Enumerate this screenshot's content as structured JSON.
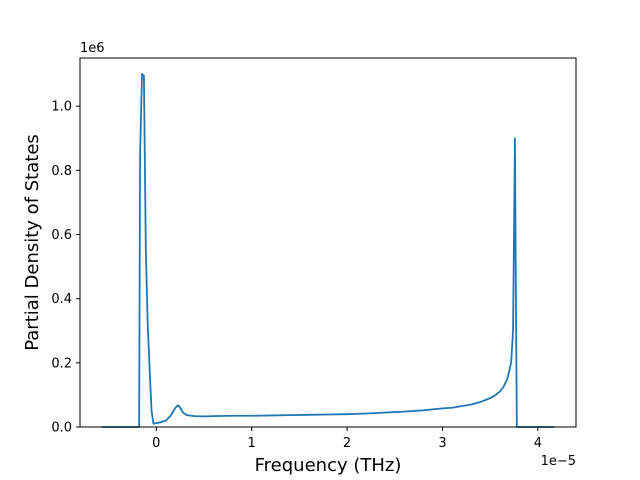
{
  "chart_data": {
    "type": "line",
    "title": "",
    "xlabel": "Frequency (THz)",
    "ylabel": "Partial Density of States",
    "x_offset_label": "1e−5",
    "y_offset_label": "1e6",
    "xlim": [
      -0.8,
      4.4
    ],
    "ylim": [
      0,
      1.15
    ],
    "x_ticks": [
      0,
      1,
      2,
      3,
      4
    ],
    "x_tick_labels": [
      "0",
      "1",
      "2",
      "3",
      "4"
    ],
    "y_ticks": [
      0.0,
      0.2,
      0.4,
      0.6,
      0.8,
      1.0
    ],
    "y_tick_labels": [
      "0.0",
      "0.2",
      "0.4",
      "0.6",
      "0.8",
      "1.0"
    ],
    "grid": false,
    "line_color": "#1f77b4",
    "series": [
      {
        "x": [
          -0.57,
          -0.3,
          -0.18,
          -0.17,
          -0.15,
          -0.13,
          -0.11,
          -0.09,
          -0.07,
          -0.05,
          -0.03,
          0.0,
          0.05,
          0.1,
          0.15,
          0.2,
          0.23,
          0.25,
          0.28,
          0.32,
          0.4,
          0.5,
          0.6,
          0.8,
          1.0,
          1.2,
          1.4,
          1.6,
          1.8,
          2.0,
          2.2,
          2.4,
          2.6,
          2.8,
          3.0,
          3.1,
          3.2,
          3.3,
          3.4,
          3.5,
          3.55,
          3.6,
          3.64,
          3.68,
          3.72,
          3.74,
          3.76,
          3.77,
          3.78,
          3.79,
          3.8,
          3.9,
          4.0,
          4.17
        ],
        "y": [
          0.0,
          0.0,
          0.0,
          0.85,
          1.1,
          1.095,
          0.55,
          0.32,
          0.18,
          0.05,
          0.01,
          0.012,
          0.015,
          0.02,
          0.035,
          0.06,
          0.068,
          0.06,
          0.045,
          0.037,
          0.034,
          0.033,
          0.034,
          0.035,
          0.035,
          0.036,
          0.037,
          0.038,
          0.039,
          0.04,
          0.042,
          0.045,
          0.048,
          0.052,
          0.058,
          0.06,
          0.065,
          0.07,
          0.078,
          0.09,
          0.098,
          0.11,
          0.125,
          0.15,
          0.2,
          0.3,
          0.9,
          0.4,
          0.0,
          0.0,
          0.0,
          0.0,
          0.0,
          0.0
        ]
      }
    ]
  }
}
